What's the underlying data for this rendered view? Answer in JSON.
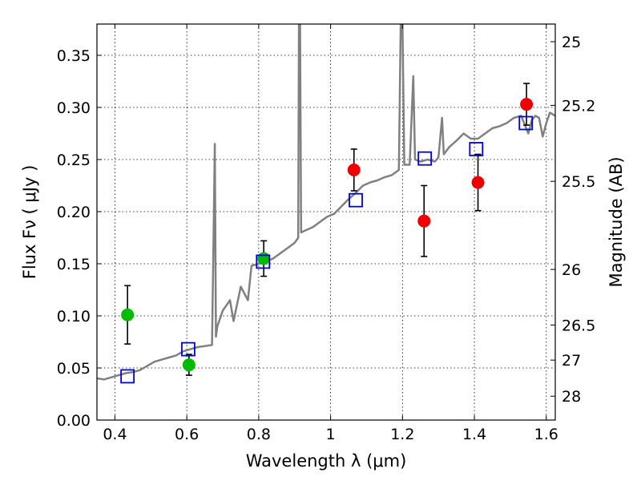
{
  "chart_data": {
    "type": "scatter",
    "xlabel": "Wavelength  λ (μm)",
    "ylabel": "Flux  Fν  ( μJy )",
    "y2label": "Magnitude (AB)",
    "xlim": [
      0.35,
      1.625
    ],
    "ylim": [
      0.0,
      0.38
    ],
    "grid": true,
    "x_ticks": [
      {
        "value": 0.4,
        "label": "0.4"
      },
      {
        "value": 0.6,
        "label": "0.6"
      },
      {
        "value": 0.8,
        "label": "0.8"
      },
      {
        "value": 1.0,
        "label": "1"
      },
      {
        "value": 1.2,
        "label": "1.2"
      },
      {
        "value": 1.4,
        "label": "1.4"
      },
      {
        "value": 1.6,
        "label": "1.6"
      }
    ],
    "y_ticks": [
      {
        "value": 0.0,
        "label": "0.00"
      },
      {
        "value": 0.05,
        "label": "0.05"
      },
      {
        "value": 0.1,
        "label": "0.10"
      },
      {
        "value": 0.15,
        "label": "0.15"
      },
      {
        "value": 0.2,
        "label": "0.20"
      },
      {
        "value": 0.25,
        "label": "0.25"
      },
      {
        "value": 0.3,
        "label": "0.30"
      },
      {
        "value": 0.35,
        "label": "0.35"
      }
    ],
    "y2_ticks": [
      {
        "value": 25,
        "label": "25"
      },
      {
        "value": 25.2,
        "label": "25.2"
      },
      {
        "value": 25.5,
        "label": "25.5"
      },
      {
        "value": 26,
        "label": "26"
      },
      {
        "value": 26.5,
        "label": "26.5"
      },
      {
        "value": 27,
        "label": "27"
      },
      {
        "value": 28,
        "label": "28"
      }
    ],
    "colors": {
      "model": "#808080",
      "green": "#00bb00",
      "red": "#ee0000",
      "square": "#0000dd",
      "error": "#000000"
    },
    "series": [
      {
        "kind": "line",
        "color": "#808080",
        "points": [
          [
            0.35,
            0.04
          ],
          [
            0.37,
            0.039
          ],
          [
            0.39,
            0.041
          ],
          [
            0.41,
            0.043
          ],
          [
            0.43,
            0.045
          ],
          [
            0.45,
            0.046
          ],
          [
            0.47,
            0.048
          ],
          [
            0.49,
            0.052
          ],
          [
            0.51,
            0.056
          ],
          [
            0.53,
            0.058
          ],
          [
            0.55,
            0.06
          ],
          [
            0.57,
            0.062
          ],
          [
            0.59,
            0.066
          ],
          [
            0.61,
            0.068
          ],
          [
            0.63,
            0.07
          ],
          [
            0.65,
            0.071
          ],
          [
            0.67,
            0.072
          ],
          [
            0.675,
            0.19
          ],
          [
            0.678,
            0.265
          ],
          [
            0.681,
            0.08
          ],
          [
            0.685,
            0.09
          ],
          [
            0.69,
            0.095
          ],
          [
            0.7,
            0.105
          ],
          [
            0.72,
            0.115
          ],
          [
            0.73,
            0.095
          ],
          [
            0.75,
            0.128
          ],
          [
            0.77,
            0.115
          ],
          [
            0.78,
            0.148
          ],
          [
            0.8,
            0.15
          ],
          [
            0.82,
            0.152
          ],
          [
            0.84,
            0.155
          ],
          [
            0.86,
            0.16
          ],
          [
            0.88,
            0.165
          ],
          [
            0.9,
            0.17
          ],
          [
            0.91,
            0.175
          ],
          [
            0.912,
            0.38
          ],
          [
            0.915,
            0.38
          ],
          [
            0.918,
            0.18
          ],
          [
            0.93,
            0.182
          ],
          [
            0.95,
            0.185
          ],
          [
            0.97,
            0.19
          ],
          [
            0.99,
            0.195
          ],
          [
            1.01,
            0.198
          ],
          [
            1.03,
            0.205
          ],
          [
            1.05,
            0.212
          ],
          [
            1.07,
            0.218
          ],
          [
            1.09,
            0.225
          ],
          [
            1.11,
            0.228
          ],
          [
            1.13,
            0.23
          ],
          [
            1.15,
            0.233
          ],
          [
            1.17,
            0.235
          ],
          [
            1.19,
            0.24
          ],
          [
            1.195,
            0.38
          ],
          [
            1.2,
            0.38
          ],
          [
            1.205,
            0.245
          ],
          [
            1.22,
            0.245
          ],
          [
            1.23,
            0.33
          ],
          [
            1.235,
            0.25
          ],
          [
            1.25,
            0.248
          ],
          [
            1.27,
            0.25
          ],
          [
            1.29,
            0.248
          ],
          [
            1.3,
            0.252
          ],
          [
            1.31,
            0.29
          ],
          [
            1.315,
            0.255
          ],
          [
            1.33,
            0.262
          ],
          [
            1.35,
            0.268
          ],
          [
            1.37,
            0.275
          ],
          [
            1.39,
            0.27
          ],
          [
            1.41,
            0.27
          ],
          [
            1.43,
            0.275
          ],
          [
            1.45,
            0.28
          ],
          [
            1.47,
            0.282
          ],
          [
            1.49,
            0.285
          ],
          [
            1.51,
            0.29
          ],
          [
            1.53,
            0.292
          ],
          [
            1.55,
            0.275
          ],
          [
            1.56,
            0.288
          ],
          [
            1.57,
            0.292
          ],
          [
            1.58,
            0.29
          ],
          [
            1.59,
            0.272
          ],
          [
            1.6,
            0.285
          ],
          [
            1.61,
            0.295
          ],
          [
            1.625,
            0.292
          ]
        ]
      },
      {
        "kind": "points",
        "marker": "circle",
        "color": "#00bb00",
        "points": [
          {
            "x": 0.435,
            "y": 0.101,
            "err": 0.028
          },
          {
            "x": 0.606,
            "y": 0.053,
            "err": 0.01
          },
          {
            "x": 0.814,
            "y": 0.155,
            "err": 0.017
          }
        ]
      },
      {
        "kind": "points",
        "marker": "circle",
        "color": "#ee0000",
        "points": [
          {
            "x": 1.065,
            "y": 0.24,
            "err": 0.02
          },
          {
            "x": 1.26,
            "y": 0.191,
            "err": 0.034
          },
          {
            "x": 1.41,
            "y": 0.228,
            "err": 0.027
          },
          {
            "x": 1.545,
            "y": 0.303,
            "err": 0.02
          }
        ]
      },
      {
        "kind": "points",
        "marker": "square",
        "color": "#0000dd",
        "points": [
          {
            "x": 0.435,
            "y": 0.042
          },
          {
            "x": 0.604,
            "y": 0.068
          },
          {
            "x": 0.812,
            "y": 0.152
          },
          {
            "x": 1.07,
            "y": 0.211
          },
          {
            "x": 1.262,
            "y": 0.251
          },
          {
            "x": 1.405,
            "y": 0.26
          },
          {
            "x": 1.543,
            "y": 0.285
          }
        ]
      }
    ]
  }
}
